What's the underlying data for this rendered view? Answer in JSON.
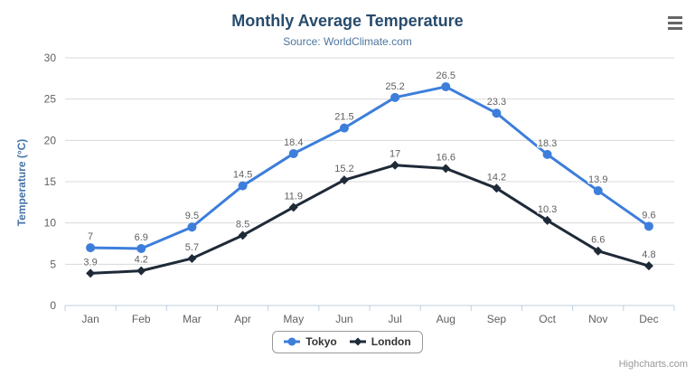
{
  "chart_data": {
    "type": "line",
    "title": "Monthly Average Temperature",
    "subtitle": "Source: WorldClimate.com",
    "ylabel": "Temperature (°C)",
    "xlabel": "",
    "categories": [
      "Jan",
      "Feb",
      "Mar",
      "Apr",
      "May",
      "Jun",
      "Jul",
      "Aug",
      "Sep",
      "Oct",
      "Nov",
      "Dec"
    ],
    "series": [
      {
        "name": "Tokyo",
        "marker": "circle",
        "color": "#3d7edb",
        "values": [
          7,
          6.9,
          9.5,
          14.5,
          18.4,
          21.5,
          25.2,
          26.5,
          23.3,
          18.3,
          13.9,
          9.6
        ]
      },
      {
        "name": "London",
        "marker": "diamond",
        "color": "#1f2a38",
        "values": [
          3.9,
          4.2,
          5.7,
          8.5,
          11.9,
          15.2,
          17,
          16.6,
          14.2,
          10.3,
          6.6,
          4.8
        ]
      }
    ],
    "ylim": [
      0,
      30
    ],
    "ytick_interval": 5,
    "grid": true,
    "data_labels": true,
    "legend_position": "bottom"
  },
  "colors": {
    "title": "#274b6d",
    "subtitle": "#4d759e",
    "y_axis_title": "#4572a7",
    "axis_labels": "#606060",
    "data_labels": "#606060",
    "grid_line": "#d8d8d8",
    "x_axis_line": "#c0d0e0",
    "legend_text": "#333333",
    "legend_border": "#999999",
    "menu_icon": "#666666",
    "credits": "#999999"
  },
  "credits": "Highcharts.com",
  "menu": {
    "icon": "hamburger-icon"
  }
}
